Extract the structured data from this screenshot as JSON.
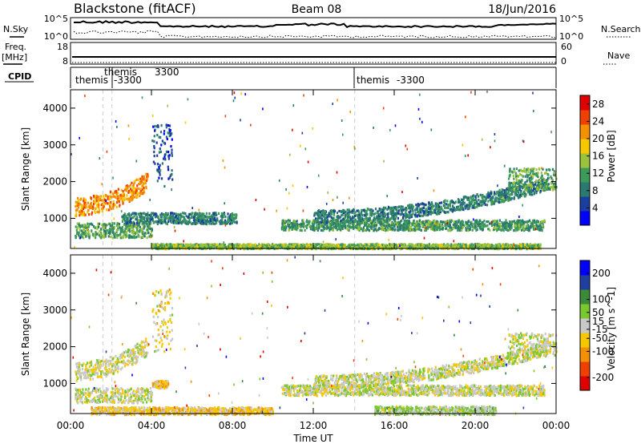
{
  "header": {
    "station": "Blackstone (fitACF)",
    "beam": "Beam 08",
    "date": "18/Jun/2016"
  },
  "top_panels": {
    "nsky_label": "N.Sky",
    "nsearch_label": "N.Search",
    "freq_label_1": "Freq.",
    "freq_label_2": "[MHz]",
    "nave_label": "Nave",
    "cpid_label": "CPID",
    "left_ticks_noise": [
      "10^5",
      "10^0"
    ],
    "right_ticks_noise": [
      "10^5",
      "10^0"
    ],
    "left_ticks_freq": [
      "18",
      "8"
    ],
    "right_ticks_freq": [
      "60",
      "0"
    ],
    "cpid_entries": [
      {
        "name": "themis",
        "cpid": "",
        "hour": 0.1
      },
      {
        "name": "themis",
        "cpid": "3300",
        "hour": 1.6
      },
      {
        "name": "",
        "cpid": "-3300",
        "hour": 2.05
      },
      {
        "name": "themis",
        "cpid": "-3300",
        "hour": 14.05
      }
    ]
  },
  "chart_data": [
    {
      "type": "heatmap",
      "name": "power",
      "ylabel": "Slant Range [km]",
      "yticks": [
        1000,
        2000,
        3000,
        4000
      ],
      "ylim": [
        180,
        4500
      ],
      "xlim": [
        0,
        24
      ],
      "colorbar_label": "Power [dB]",
      "colorbar_ticks": [
        4,
        8,
        12,
        16,
        20,
        24,
        28
      ],
      "colorbar_range": [
        0,
        30
      ],
      "colors": [
        "#0000ff",
        "#1a3fa0",
        "#2a7a70",
        "#3d9a5a",
        "#9ac23a",
        "#f5c800",
        "#f59000",
        "#f04000",
        "#e00000"
      ],
      "bands": [
        {
          "x": [
            0.2,
            3.8
          ],
          "y": [
            1100,
            1600
          ],
          "rise": 700,
          "value": 22
        },
        {
          "x": [
            0.2,
            4.0
          ],
          "y": [
            500,
            900
          ],
          "rise": 0,
          "value": 12
        },
        {
          "x": [
            4.0,
            5.0
          ],
          "y": [
            1900,
            3600
          ],
          "rise": 0,
          "value": 6
        },
        {
          "x": [
            2.5,
            8.2
          ],
          "y": [
            880,
            1180
          ],
          "rise": 0,
          "value": 9
        },
        {
          "x": [
            4.0,
            23.2
          ],
          "y": [
            200,
            330
          ],
          "rise": 0,
          "value": 14
        },
        {
          "x": [
            10.4,
            23.4
          ],
          "y": [
            700,
            980
          ],
          "rise": 0,
          "value": 11
        },
        {
          "x": [
            12.0,
            23.6
          ],
          "y": [
            900,
            1250
          ],
          "rise": 900,
          "value": 9
        },
        {
          "x": [
            21.6,
            24.0
          ],
          "y": [
            1800,
            2400
          ],
          "rise": 0,
          "value": 12
        }
      ]
    },
    {
      "type": "heatmap",
      "name": "velocity",
      "xlabel": "Time UT",
      "xticks": [
        "00:00",
        "04:00",
        "08:00",
        "12:00",
        "16:00",
        "20:00",
        "00:00"
      ],
      "ylabel": "Slant Range [km]",
      "yticks": [
        1000,
        2000,
        3000,
        4000
      ],
      "ylim": [
        180,
        4500
      ],
      "xlim": [
        0,
        24
      ],
      "colorbar_label": "Velocity [m s^-1]",
      "colorbar_ticks": [
        200,
        100,
        50,
        15,
        -15,
        -50,
        -100,
        -200
      ],
      "colorbar_range": [
        -250,
        250
      ],
      "colors": [
        "#e00000",
        "#f04000",
        "#f59000",
        "#f5c800",
        "#c8c8c8",
        "#7ac830",
        "#3a8a3a",
        "#2040a0",
        "#0000ff"
      ],
      "bands": [
        {
          "x": [
            0.2,
            3.8
          ],
          "y": [
            1100,
            1600
          ],
          "rise": 700,
          "value": 0
        },
        {
          "x": [
            0.2,
            4.0
          ],
          "y": [
            500,
            900
          ],
          "rise": 0,
          "value": 0
        },
        {
          "x": [
            4.0,
            5.0
          ],
          "y": [
            1900,
            3600
          ],
          "rise": 0,
          "value": -30
        },
        {
          "x": [
            4.0,
            4.8
          ],
          "y": [
            900,
            1100
          ],
          "rise": 0,
          "value": -60
        },
        {
          "x": [
            1.0,
            10.0
          ],
          "y": [
            180,
            380
          ],
          "rise": 0,
          "value": -50
        },
        {
          "x": [
            10.4,
            23.4
          ],
          "y": [
            700,
            980
          ],
          "rise": 0,
          "value": 0
        },
        {
          "x": [
            12.0,
            23.6
          ],
          "y": [
            900,
            1250
          ],
          "rise": 900,
          "value": 0
        },
        {
          "x": [
            15.0,
            21.0
          ],
          "y": [
            180,
            400
          ],
          "rise": 0,
          "value": 30
        },
        {
          "x": [
            21.6,
            24.0
          ],
          "y": [
            1800,
            2400
          ],
          "rise": 0,
          "value": 0
        }
      ]
    }
  ]
}
